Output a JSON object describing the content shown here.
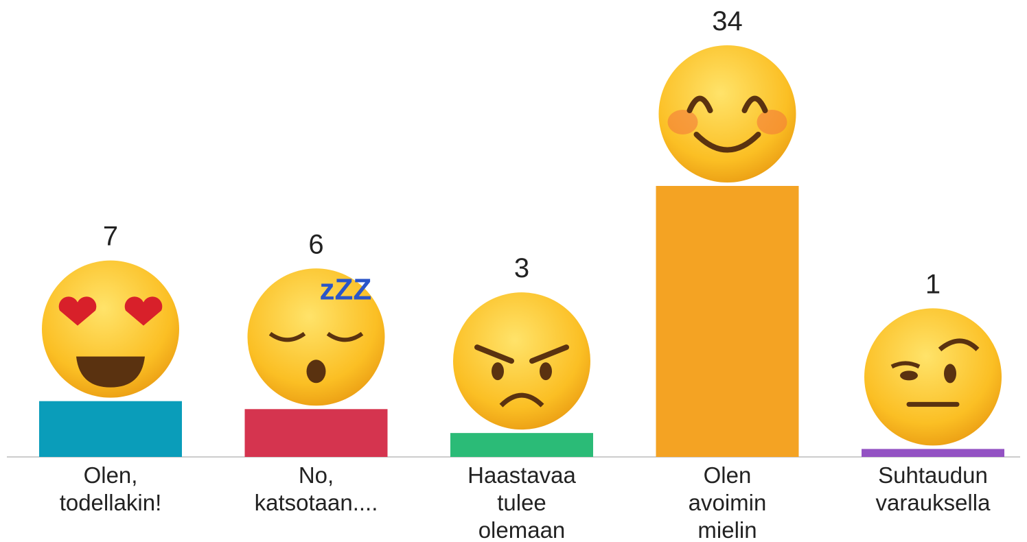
{
  "chart_data": {
    "type": "bar",
    "categories": [
      [
        "Olen,",
        "todellakin!"
      ],
      [
        "No,",
        "katsotaan...."
      ],
      [
        "Haastavaa",
        "tulee",
        "olemaan"
      ],
      [
        "Olen",
        "avoimin",
        "mielin"
      ],
      [
        "Suhtaudun",
        "varauksella"
      ]
    ],
    "values": [
      7,
      6,
      3,
      34,
      1
    ],
    "colors": [
      "#0a9dba",
      "#d5344f",
      "#2bbb77",
      "#f4a323",
      "#9352c3"
    ],
    "ylim": [
      0,
      34
    ]
  }
}
